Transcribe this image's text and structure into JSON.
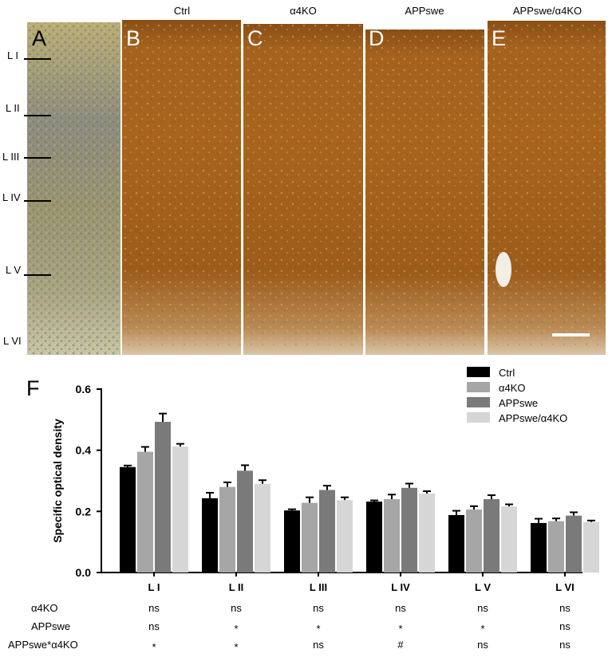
{
  "panel_letters": [
    "A",
    "B",
    "C",
    "D",
    "E",
    "F"
  ],
  "column_titles": [
    "Ctrl",
    "α4KO",
    "APPswe",
    "APPswe/α4KO"
  ],
  "layer_labels": [
    "L I",
    "L II",
    "L III",
    "L IV",
    "L V",
    "L VI"
  ],
  "colors": {
    "Ctrl": "#000000",
    "α4KO": "#a6a6a6",
    "APPswe": "#7a7a7a",
    "APPswe/α4KO": "#d6d6d6",
    "stain_brown": "#a8641c",
    "nissl_tan": "#b3a86e"
  },
  "chart_data": {
    "type": "bar",
    "title": "",
    "xlabel": "",
    "ylabel": "Specific optical density",
    "ylim": [
      0,
      0.6
    ],
    "yticks": [
      "0.0",
      "0.2",
      "0.4",
      "0.6"
    ],
    "categories": [
      "L I",
      "L II",
      "L III",
      "L IV",
      "L V",
      "L VI"
    ],
    "legend_position": "top-right",
    "series": [
      {
        "name": "Ctrl",
        "values": [
          0.345,
          0.243,
          0.203,
          0.232,
          0.188,
          0.162
        ],
        "errors": [
          0.005,
          0.018,
          0.004,
          0.004,
          0.014,
          0.014
        ]
      },
      {
        "name": "α4KO",
        "values": [
          0.395,
          0.28,
          0.228,
          0.24,
          0.206,
          0.168
        ],
        "errors": [
          0.016,
          0.015,
          0.018,
          0.015,
          0.011,
          0.009
        ]
      },
      {
        "name": "APPswe",
        "values": [
          0.493,
          0.333,
          0.27,
          0.277,
          0.24,
          0.186
        ],
        "errors": [
          0.027,
          0.018,
          0.014,
          0.014,
          0.013,
          0.011
        ]
      },
      {
        "name": "APPswe/α4KO",
        "values": [
          0.412,
          0.29,
          0.237,
          0.258,
          0.216,
          0.165
        ],
        "errors": [
          0.009,
          0.012,
          0.009,
          0.008,
          0.007,
          0.005
        ]
      }
    ]
  },
  "stats_table": {
    "rows": [
      {
        "label": "α4KO",
        "values": [
          "ns",
          "ns",
          "ns",
          "ns",
          "ns",
          "ns"
        ]
      },
      {
        "label": "APPswe",
        "values": [
          "ns",
          "*",
          "*",
          "*",
          "*",
          "ns"
        ]
      },
      {
        "label": "APPswe*α4KO",
        "values": [
          "*",
          "*",
          "ns",
          "#",
          "ns",
          "ns"
        ]
      }
    ]
  }
}
